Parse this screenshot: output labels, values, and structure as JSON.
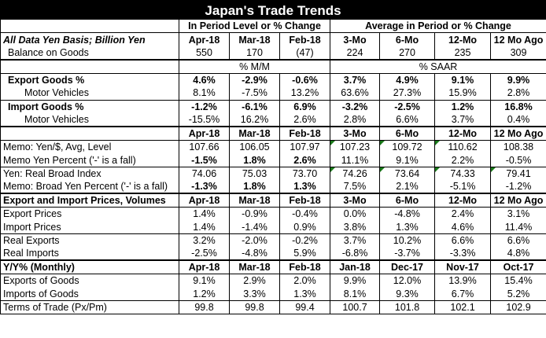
{
  "title": "Japan's Trade Trends",
  "group_headers": {
    "left": "In Period Level or % Change",
    "right": "Average in Period or % Change"
  },
  "rows": {
    "h1": [
      "All Data Yen Basis; Billion Yen",
      "Apr-18",
      "Mar-18",
      "Feb-18",
      "3-Mo",
      "6-Mo",
      "12-Mo",
      "12 Mo Ago"
    ],
    "balance": [
      "Balance on Goods",
      "550",
      "170",
      "(47)",
      "224",
      "270",
      "235",
      "309"
    ],
    "mm_label": "% M/M",
    "saar_label": "% SAAR",
    "export_goods": [
      "Export Goods %",
      "4.6%",
      "-2.9%",
      "-0.6%",
      "3.7%",
      "4.9%",
      "9.1%",
      "9.9%"
    ],
    "export_mv": [
      "Motor Vehicles",
      "8.1%",
      "-7.5%",
      "13.2%",
      "63.6%",
      "27.3%",
      "15.9%",
      "2.8%"
    ],
    "import_goods": [
      "Import Goods %",
      "-1.2%",
      "-6.1%",
      "6.9%",
      "-3.2%",
      "-2.5%",
      "1.2%",
      "16.8%"
    ],
    "import_mv": [
      "Motor Vehicles",
      "-15.5%",
      "16.2%",
      "2.6%",
      "2.8%",
      "6.6%",
      "3.7%",
      "0.4%"
    ],
    "h2": [
      "",
      "Apr-18",
      "Mar-18",
      "Feb-18",
      "3-Mo",
      "6-Mo",
      "12-Mo",
      "12 Mo Ago"
    ],
    "memo_yen": [
      "Memo: Yen/$, Avg, Level",
      "107.66",
      "106.05",
      "107.97",
      "107.23",
      "109.72",
      "110.62",
      "108.38"
    ],
    "memo_yen_pct": [
      "Memo Yen Percent ('-' is a fall)",
      "-1.5%",
      "1.8%",
      "2.6%",
      "11.1%",
      "9.1%",
      "2.2%",
      "-0.5%"
    ],
    "real_broad": [
      "Yen: Real Broad Index",
      "74.06",
      "75.03",
      "73.70",
      "74.26",
      "73.64",
      "74.33",
      "79.41"
    ],
    "memo_broad": [
      "Memo: Broad Yen Percent ('-' is a fall)",
      "-1.3%",
      "1.8%",
      "1.3%",
      "7.5%",
      "2.1%",
      "-5.1%",
      "-1.2%"
    ],
    "h3": [
      "Export and Import Prices, Volumes",
      "Apr-18",
      "Mar-18",
      "Feb-18",
      "3-Mo",
      "6-Mo",
      "12-Mo",
      "12 Mo Ago"
    ],
    "export_prices": [
      "Export Prices",
      "1.4%",
      "-0.9%",
      "-0.4%",
      "0.0%",
      "-4.8%",
      "2.4%",
      "3.1%"
    ],
    "import_prices": [
      "Import Prices",
      "1.4%",
      "-1.4%",
      "0.9%",
      "3.8%",
      "1.3%",
      "4.6%",
      "11.4%"
    ],
    "real_exports": [
      "Real Exports",
      "3.2%",
      "-2.0%",
      "-0.2%",
      "3.7%",
      "10.2%",
      "6.6%",
      "6.6%"
    ],
    "real_imports": [
      "Real Imports",
      "-2.5%",
      "-4.8%",
      "5.9%",
      "-6.8%",
      "-3.7%",
      "-3.3%",
      "4.8%"
    ],
    "h4": [
      "Y/Y% (Monthly)",
      "Apr-18",
      "Mar-18",
      "Feb-18",
      "Jan-18",
      "Dec-17",
      "Nov-17",
      "Oct-17"
    ],
    "exports_goods_yy": [
      "Exports of Goods",
      "9.1%",
      "2.9%",
      "2.0%",
      "9.9%",
      "12.0%",
      "13.9%",
      "15.4%"
    ],
    "imports_goods_yy": [
      "Imports of Goods",
      "1.2%",
      "3.3%",
      "1.3%",
      "8.1%",
      "9.3%",
      "6.7%",
      "5.2%"
    ],
    "terms_of_trade": [
      "Terms of Trade (Px/Pm)",
      "99.8",
      "99.8",
      "99.4",
      "100.7",
      "101.8",
      "102.1",
      "102.9"
    ]
  },
  "colors": {
    "title_bg": "#000000",
    "title_fg": "#ffffff",
    "cell_marker": "#1a7a1a"
  }
}
